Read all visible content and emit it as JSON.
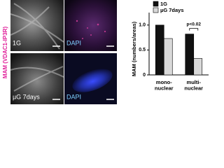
{
  "figure": {
    "side_label": "MAM (VDAC1-IP3R)",
    "panels": [
      {
        "label": "1G",
        "stain": "DAPI"
      },
      {
        "label": "µG 7days",
        "stain": "DAPI"
      }
    ]
  },
  "chart_data": {
    "type": "bar",
    "y_label": "MAM (numbers/areas)",
    "categories": [
      "mono-\nnuclear",
      "multi-\nnuclear"
    ],
    "series": [
      {
        "name": "1G",
        "color": "#111111",
        "values": [
          1.0,
          0.82
        ]
      },
      {
        "name": "µG 7days",
        "color": "#d9d9d9",
        "values": [
          0.73,
          0.33
        ]
      }
    ],
    "ylim": [
      0,
      1.25
    ],
    "yticks": [
      0,
      0.5,
      {
        "value": 1,
        "label": "1.0"
      }
    ],
    "annotation": "p<0.02",
    "legend": "top"
  }
}
